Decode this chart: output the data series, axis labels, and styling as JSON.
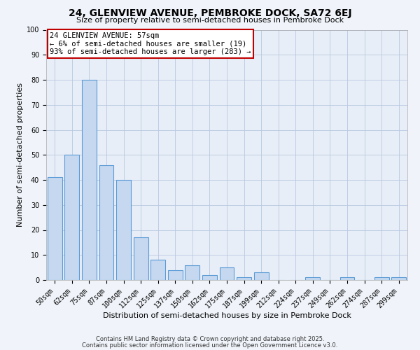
{
  "title": "24, GLENVIEW AVENUE, PEMBROKE DOCK, SA72 6EJ",
  "subtitle": "Size of property relative to semi-detached houses in Pembroke Dock",
  "xlabel": "Distribution of semi-detached houses by size in Pembroke Dock",
  "ylabel": "Number of semi-detached properties",
  "categories": [
    "50sqm",
    "62sqm",
    "75sqm",
    "87sqm",
    "100sqm",
    "112sqm",
    "125sqm",
    "137sqm",
    "150sqm",
    "162sqm",
    "175sqm",
    "187sqm",
    "199sqm",
    "212sqm",
    "224sqm",
    "237sqm",
    "249sqm",
    "262sqm",
    "274sqm",
    "287sqm",
    "299sqm"
  ],
  "values": [
    41,
    50,
    80,
    46,
    40,
    17,
    8,
    4,
    6,
    2,
    5,
    1,
    3,
    0,
    0,
    1,
    0,
    1,
    0,
    1,
    1
  ],
  "bar_color": "#c5d8f0",
  "bar_edge_color": "#5b9bd5",
  "ylim": [
    0,
    100
  ],
  "yticks": [
    0,
    10,
    20,
    30,
    40,
    50,
    60,
    70,
    80,
    90,
    100
  ],
  "annotation_title": "24 GLENVIEW AVENUE: 57sqm",
  "annotation_line1": "← 6% of semi-detached houses are smaller (19)",
  "annotation_line2": "93% of semi-detached houses are larger (283) →",
  "annotation_box_edge_color": "#c00000",
  "annotation_box_bg": "#ffffff",
  "footer1": "Contains HM Land Registry data © Crown copyright and database right 2025.",
  "footer2": "Contains public sector information licensed under the Open Government Licence v3.0.",
  "background_color": "#f0f4fa",
  "plot_bg_color": "#e8eef8",
  "grid_color": "#b8c8e0",
  "title_fontsize": 10,
  "subtitle_fontsize": 8,
  "axis_label_fontsize": 8,
  "tick_fontsize": 7,
  "annotation_fontsize": 7.5,
  "footer_fontsize": 6
}
